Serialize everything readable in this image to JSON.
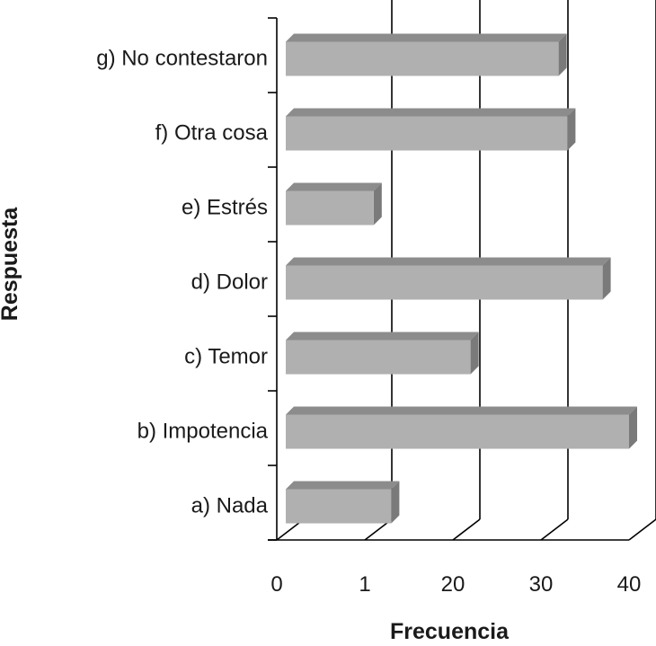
{
  "chart_data": {
    "type": "bar",
    "orientation": "horizontal",
    "style": "3d",
    "xlabel": "Frecuencia",
    "ylabel": "Respuesta",
    "x_tick_labels": [
      "0",
      "1",
      "20",
      "30",
      "40"
    ],
    "categories": [
      "a) Nada",
      "b) Impotencia",
      "c) Temor",
      "d) Dolor",
      "e) Estrés",
      "f) Otra cosa",
      "g) No contestaron"
    ],
    "values": [
      13,
      40,
      22,
      37,
      11,
      33,
      32
    ],
    "xlim": [
      0,
      40
    ],
    "grid": true,
    "colors": {
      "bar_front": "#b0b0b0",
      "bar_top": "#8c8c8c",
      "bar_side": "#7a7a7a",
      "axis": "#000000"
    }
  }
}
